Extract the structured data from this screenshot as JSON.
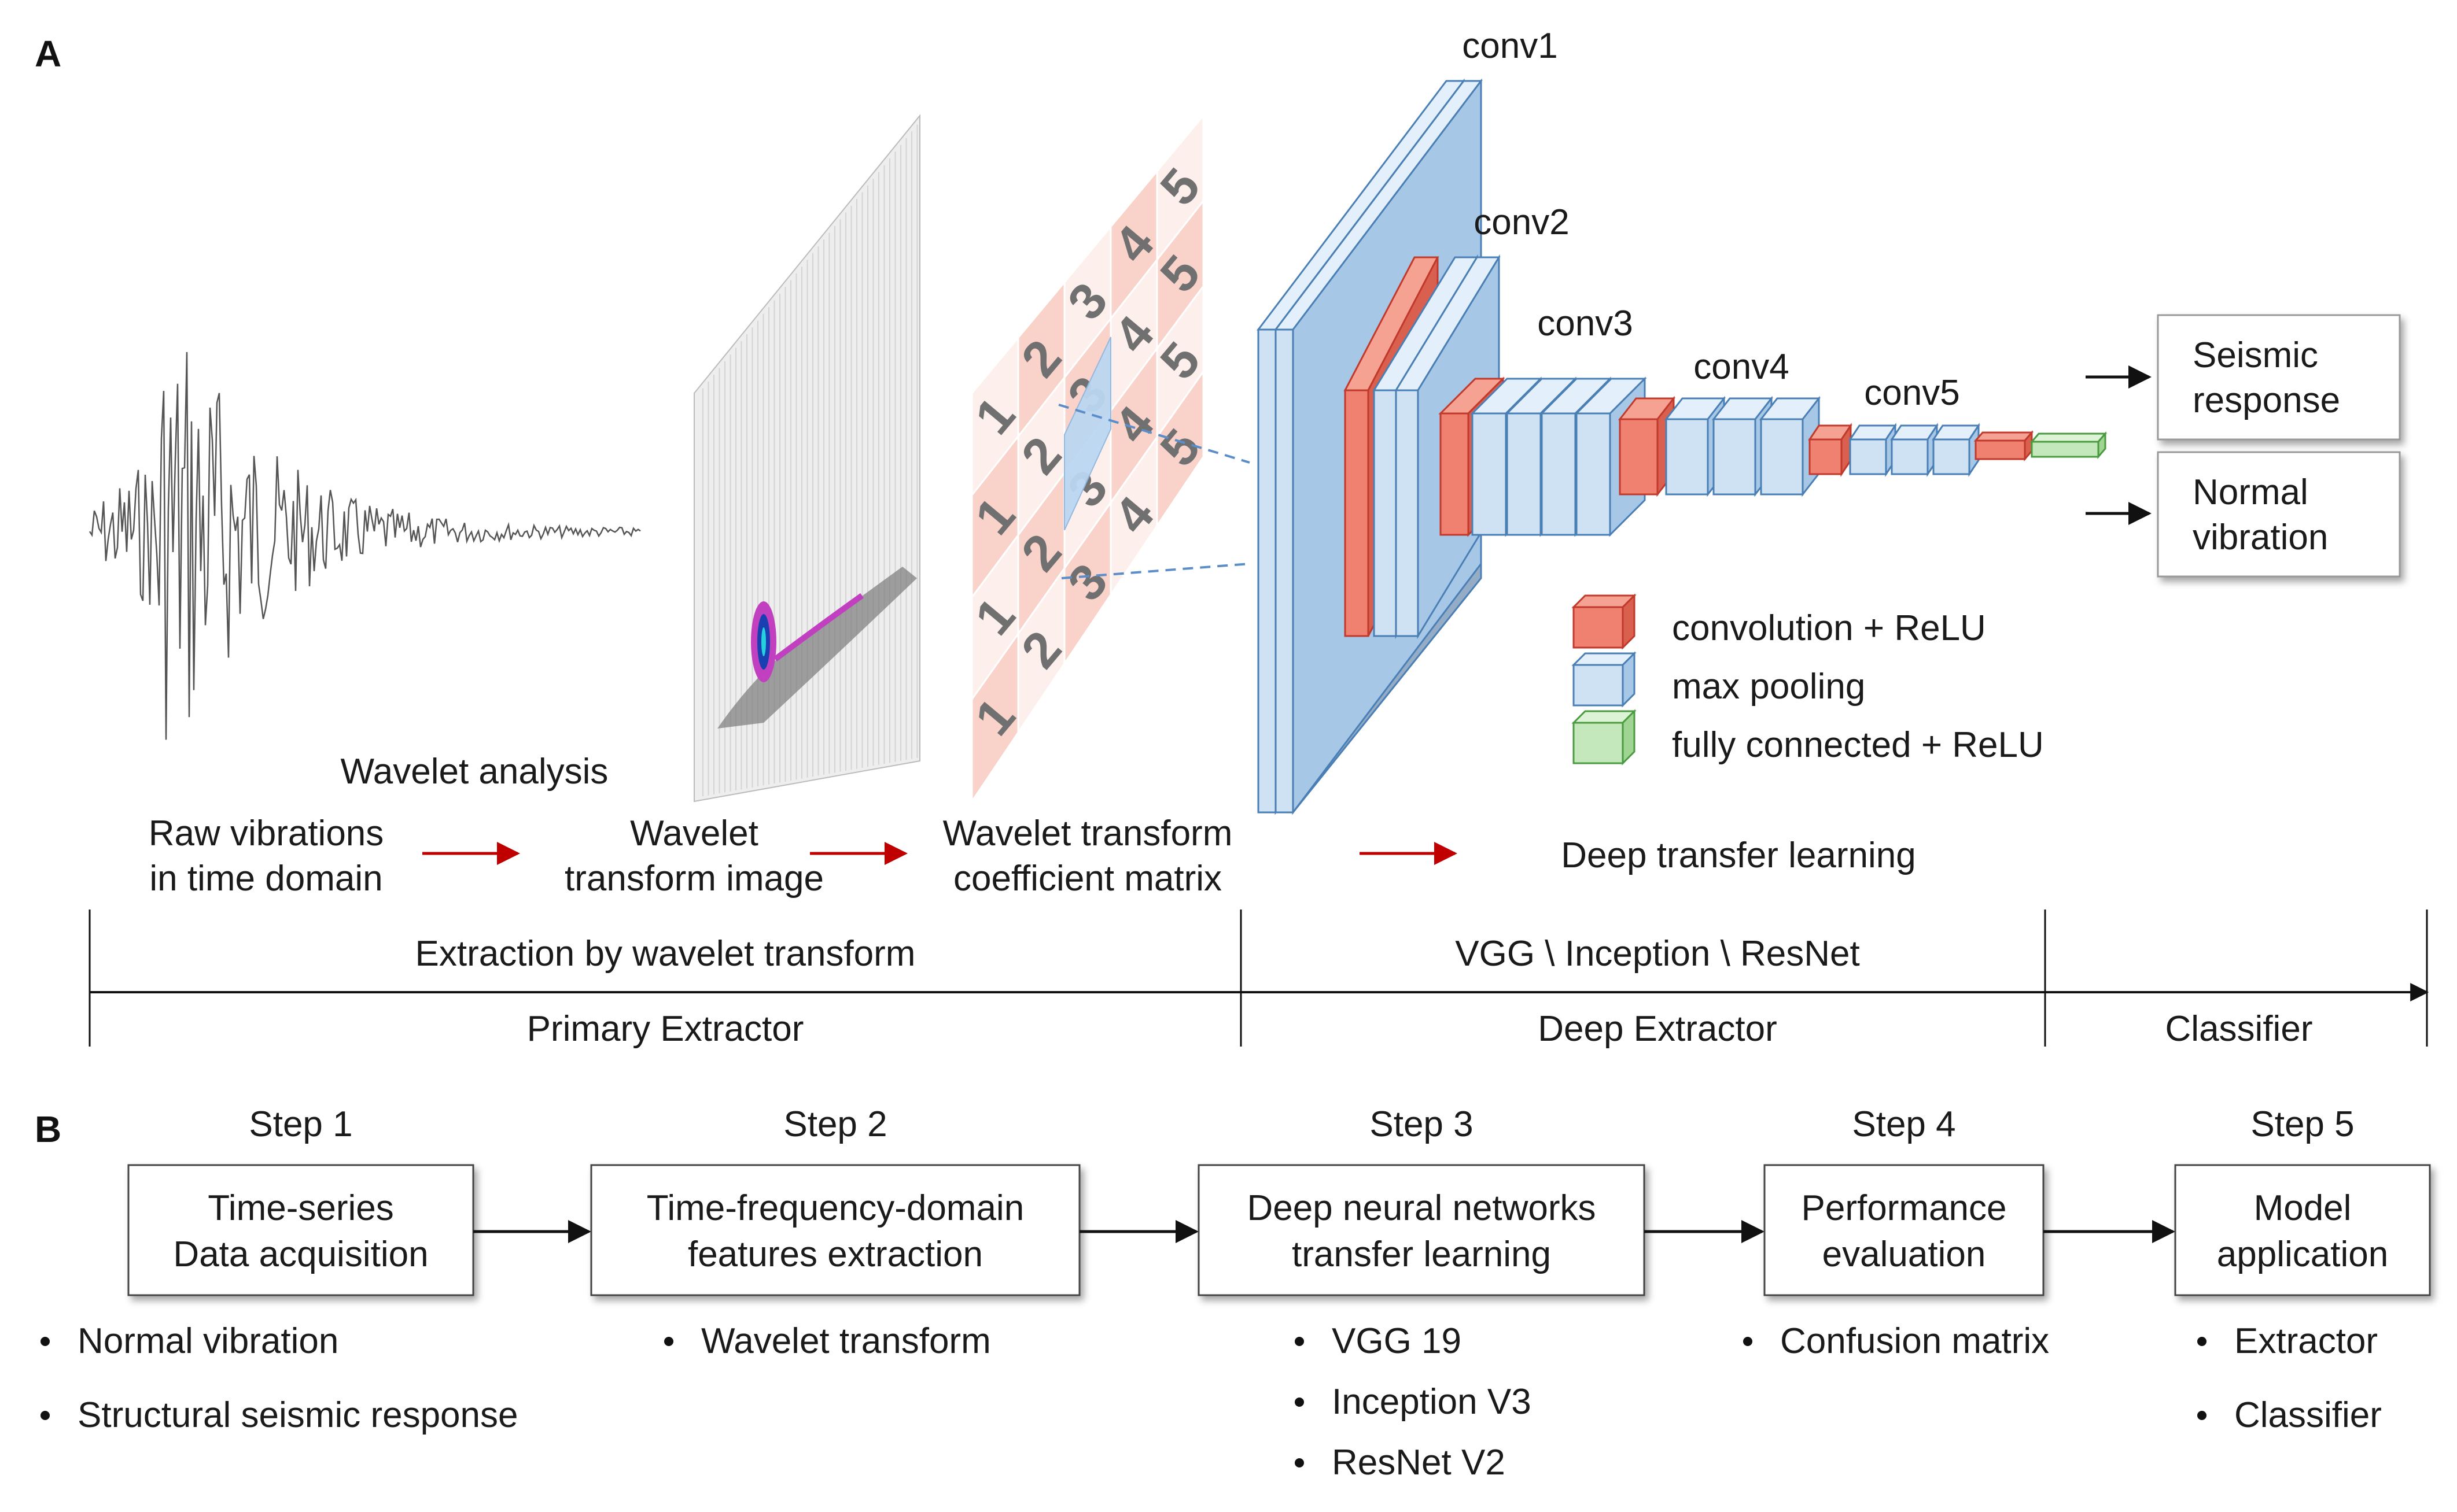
{
  "panel_a": {
    "label": "A",
    "network_layers": {
      "conv1": "conv1",
      "conv2": "conv2",
      "conv3": "conv3",
      "conv4": "conv4",
      "conv5": "conv5"
    },
    "outputs": {
      "seismic_line1": "Seismic",
      "seismic_line2": "response",
      "normal_line1": "Normal",
      "normal_line2": "vibration"
    },
    "legend": {
      "conv_relu": "convolution + ReLU",
      "max_pooling": "max pooling",
      "fc_relu": "fully connected + ReLU"
    },
    "legend_colors": {
      "conv_relu": "#f08070",
      "max_pooling": "#cfe2f3",
      "fc_relu": "#c4e8bc"
    },
    "pipeline": {
      "wavelet_analysis": "Wavelet analysis",
      "raw_line1": "Raw vibrations",
      "raw_line2": "in time domain",
      "wti_line1": "Wavelet",
      "wti_line2": "transform image",
      "wtc_line1": "Wavelet transform",
      "wtc_line2": "coefficient matrix",
      "dtl": "Deep transfer learning"
    },
    "matrix_values": [
      "1",
      "2",
      "3",
      "4",
      "5"
    ],
    "timeline": {
      "extraction": "Extraction by wavelet transform",
      "models": "VGG \\ Inception \\ ResNet",
      "primary": "Primary Extractor",
      "deep": "Deep Extractor",
      "classifier": "Classifier"
    }
  },
  "panel_b": {
    "label": "B",
    "steps": [
      {
        "step": "Step 1",
        "line1": "Time-series",
        "line2": "Data acquisition",
        "bullets": [
          "Normal vibration",
          "Structural seismic response"
        ]
      },
      {
        "step": "Step 2",
        "line1": "Time-frequency-domain",
        "line2": "features extraction",
        "bullets": [
          "Wavelet transform"
        ]
      },
      {
        "step": "Step 3",
        "line1": "Deep neural networks",
        "line2": "transfer learning",
        "bullets": [
          "VGG 19",
          "Inception V3",
          "ResNet V2"
        ]
      },
      {
        "step": "Step 4",
        "line1": "Performance",
        "line2": "evaluation",
        "bullets": [
          "Confusion matrix"
        ]
      },
      {
        "step": "Step 5",
        "line1": "Model",
        "line2": "application",
        "bullets": [
          "Extractor",
          "Classifier"
        ]
      }
    ]
  }
}
